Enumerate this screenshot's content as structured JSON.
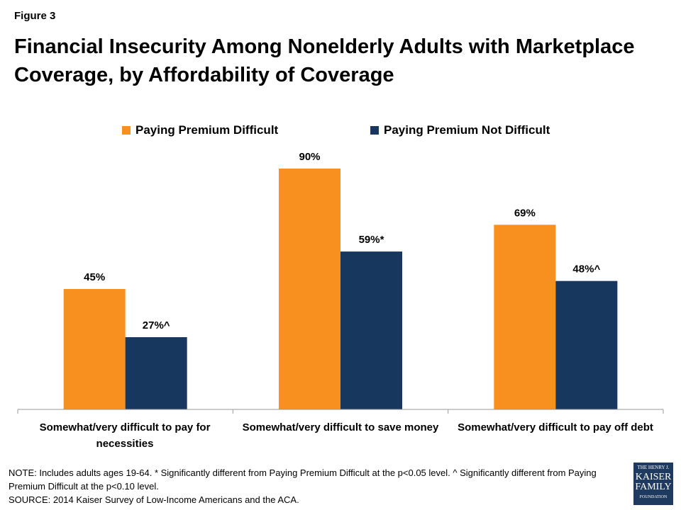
{
  "figure_label": "Figure 3",
  "chart_data": {
    "type": "bar",
    "title": "Financial Insecurity Among Nonelderly Adults with Marketplace Coverage, by Affordability of Coverage",
    "categories": [
      "Somewhat/very difficult to pay for necessities",
      "Somewhat/very difficult to save money",
      "Somewhat/very difficult to pay off debt"
    ],
    "series": [
      {
        "name": "Paying Premium Difficult",
        "color": "#F7901E",
        "values": [
          45,
          90,
          69
        ],
        "labels": [
          "45%",
          "90%",
          "69%"
        ]
      },
      {
        "name": "Paying Premium Not Difficult",
        "color": "#17375E",
        "values": [
          27,
          59,
          48
        ],
        "labels": [
          "27%^",
          "59%*",
          "48%^"
        ]
      }
    ],
    "ylim": [
      0,
      100
    ],
    "grid": false,
    "legend": "top"
  },
  "note": "NOTE: Includes adults ages 19-64. * Significantly different from Paying Premium Difficult at the p<0.05 level.  ^ Significantly different from Paying Premium Difficult at the p<0.10 level.",
  "source": "SOURCE: 2014 Kaiser Survey of Low-Income Americans and the ACA.",
  "logo": {
    "line1": "THE HENRY J.",
    "line2": "KAISER",
    "line3": "FAMILY",
    "line4": "FOUNDATION"
  }
}
